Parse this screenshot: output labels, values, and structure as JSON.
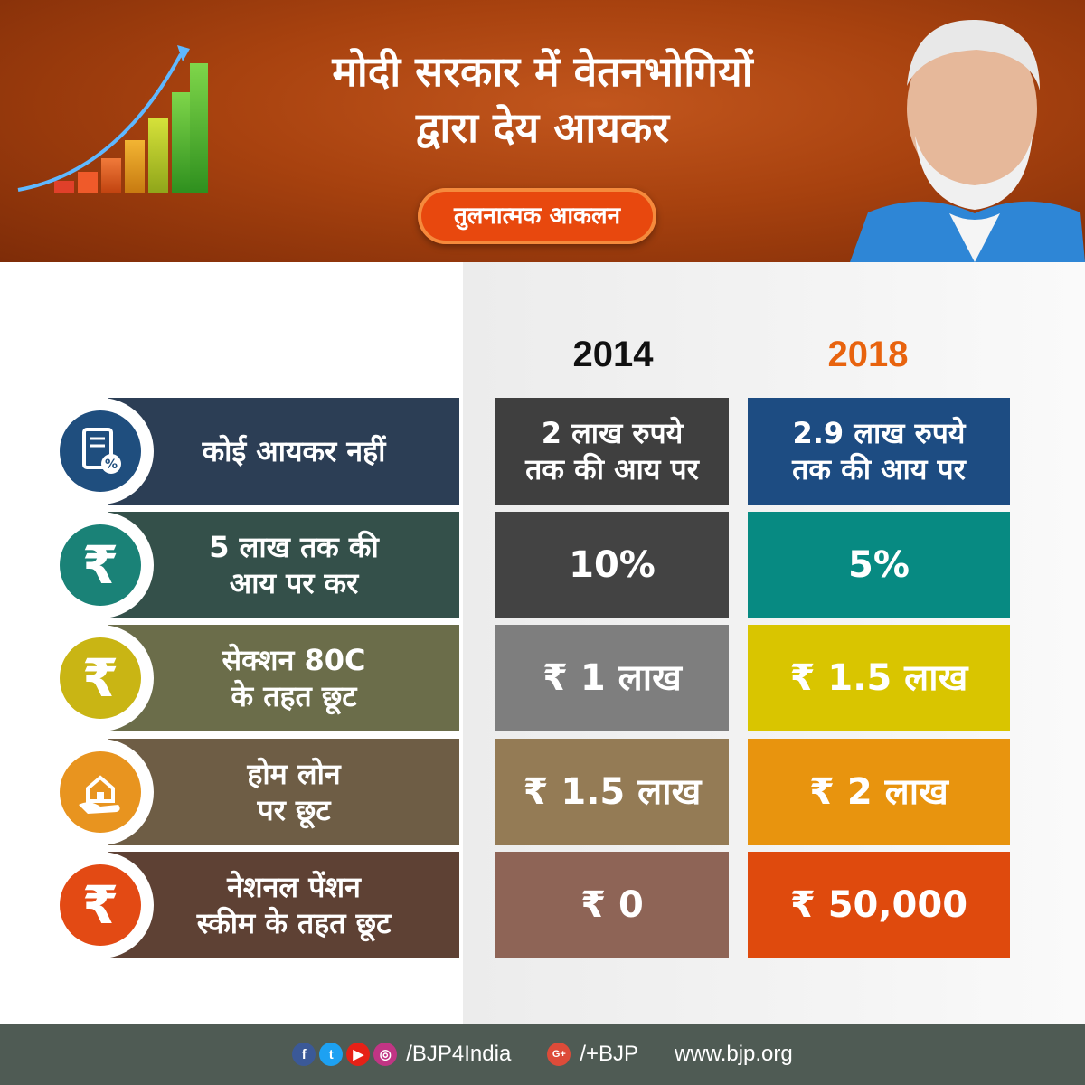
{
  "header": {
    "title_line1": "मोदी सरकार में वेतनभोगियों",
    "title_line2": "द्वारा देय आयकर",
    "subtitle": "तुलनात्मक आकलन"
  },
  "years": {
    "left": "2014",
    "right": "2018"
  },
  "rows": [
    {
      "label_line1": "कोई आयकर नहीं",
      "label_line2": "",
      "val_2014_line1": "2 लाख रुपये",
      "val_2014_line2": "तक की आय पर",
      "val_2018_line1": "2.9 लाख रुपये",
      "val_2018_line2": "तक की आय पर",
      "icon": "tax-document-icon"
    },
    {
      "label_line1": "5 लाख तक की",
      "label_line2": "आय पर कर",
      "val_2014_line1": "10%",
      "val_2014_line2": "",
      "val_2018_line1": "5%",
      "val_2018_line2": "",
      "icon": "rupee-icon"
    },
    {
      "label_line1": "सेक्शन 80C",
      "label_line2": "के तहत छूट",
      "val_2014_line1": "₹ 1 लाख",
      "val_2014_line2": "",
      "val_2018_line1": "₹ 1.5 लाख",
      "val_2018_line2": "",
      "icon": "rupee-icon"
    },
    {
      "label_line1": "होम लोन",
      "label_line2": "पर छूट",
      "val_2014_line1": "₹ 1.5 लाख",
      "val_2014_line2": "",
      "val_2018_line1": "₹ 2 लाख",
      "val_2018_line2": "",
      "icon": "home-loan-hand-icon"
    },
    {
      "label_line1": "नेशनल पेंशन",
      "label_line2": "स्कीम के तहत छूट",
      "val_2014_line1": "₹ 0",
      "val_2014_line2": "",
      "val_2018_line1": "₹ 50,000",
      "val_2018_line2": "",
      "icon": "rupee-icon"
    }
  ],
  "colors": {
    "label_bg": [
      "#2c3e55",
      "#34504a",
      "#6b6d4a",
      "#6e5d45",
      "#5e4134"
    ],
    "icon_bg": [
      "#1f4e7e",
      "#1a8277",
      "#c9b514",
      "#e8941f",
      "#e34a14"
    ],
    "cell_2014_bg": [
      "#3f3f3f",
      "#434343",
      "#7e7e7e",
      "#947b55",
      "#8e6456"
    ],
    "cell_2018_bg": [
      "#1d4c82",
      "#078a82",
      "#d9c500",
      "#e8940e",
      "#df4a0d"
    ]
  },
  "footer": {
    "handle": "/BJP4India",
    "gplus": "/+BJP",
    "site": "www.bjp.org",
    "icons": [
      "facebook-icon",
      "twitter-icon",
      "youtube-icon",
      "instagram-icon",
      "google-plus-icon"
    ]
  }
}
